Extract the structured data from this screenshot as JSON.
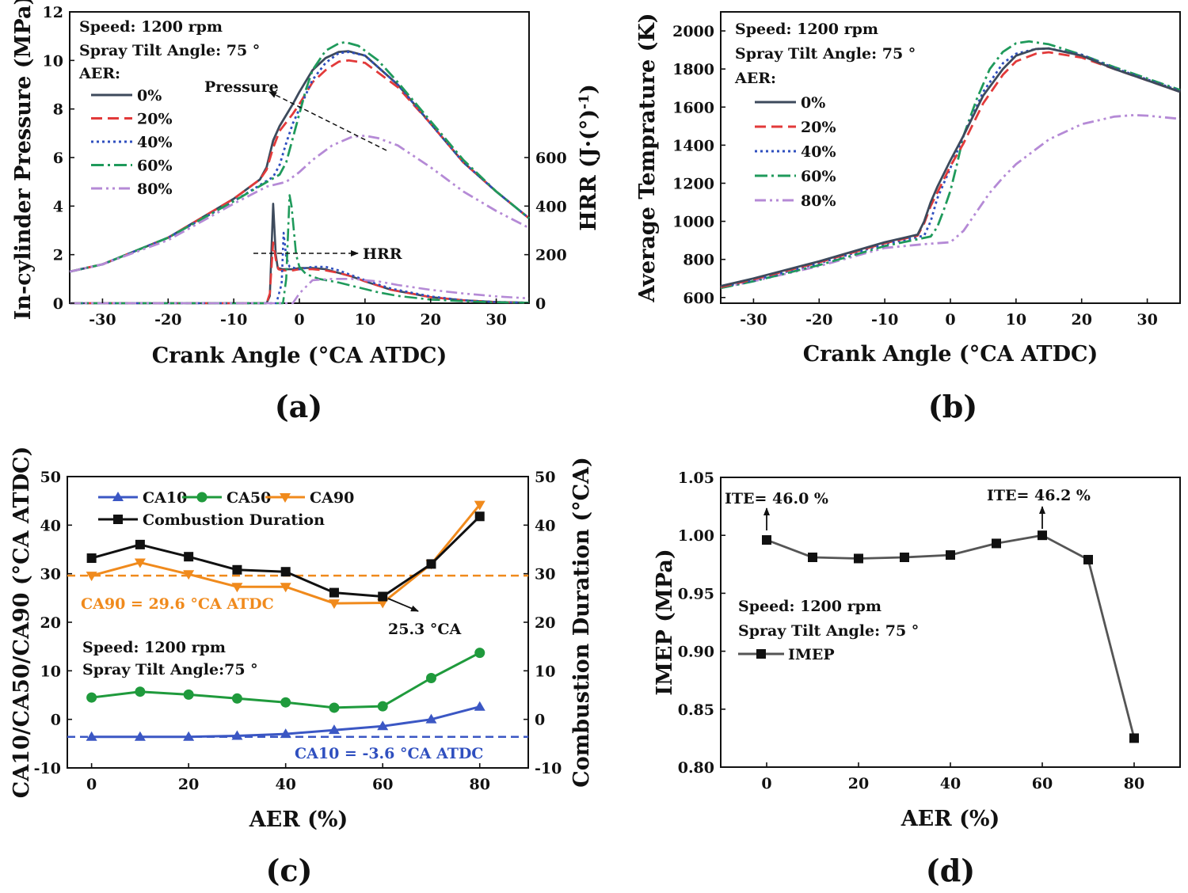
{
  "panels": [
    {
      "label": "(a)"
    },
    {
      "label": "(b)"
    },
    {
      "label": "(c)"
    },
    {
      "label": "(d)"
    }
  ],
  "colors": {
    "p0": "#3d4a5c",
    "p20": "#e23a3a",
    "p40": "#2f4fbf",
    "p60": "#1f9a5b",
    "p80": "#b58ad6",
    "ca10": "#3b57c4",
    "ca50": "#1f9a3c",
    "ca90": "#f08a1c",
    "dur": "#111111",
    "imep": "#555555"
  },
  "chart_data": [
    {
      "id": "a",
      "type": "line",
      "xlabel": "Crank Angle (°CA ATDC)",
      "ylabel": "In-cylinder Pressure (MPa)",
      "y2label": "HRR (J·(°)",
      "y2label_sup": "-1",
      "y2label_close": ")",
      "xlim": [
        -35,
        35
      ],
      "ylim": [
        0,
        12
      ],
      "y2lim": [
        0,
        1200
      ],
      "xticks": [
        "-30",
        "-20",
        "-10",
        "0",
        "10",
        "20",
        "30"
      ],
      "yticks": [
        "0",
        "2",
        "4",
        "6",
        "8",
        "10",
        "12"
      ],
      "y2ticks": [
        "0",
        "200",
        "400",
        "600"
      ],
      "annotations": {
        "speed": "Speed: 1200 rpm",
        "tilt": "Spray Tilt Angle: 75 °",
        "aer": "AER:",
        "pressure": "Pressure",
        "hrr": "HRR"
      },
      "legend": [
        "0%",
        "20%",
        "40%",
        "60%",
        "80%"
      ],
      "pressure_series": [
        {
          "name": "0%",
          "x": [
            -35,
            -30,
            -20,
            -10,
            -6,
            -5,
            -4,
            -3,
            -1,
            0,
            2,
            4,
            6,
            7.5,
            10,
            15,
            20,
            25,
            30,
            35
          ],
          "y": [
            1.3,
            1.6,
            2.7,
            4.3,
            5.1,
            5.6,
            6.7,
            7.3,
            8.2,
            8.7,
            9.6,
            10.1,
            10.35,
            10.38,
            10.2,
            9.0,
            7.4,
            5.8,
            4.6,
            3.5
          ]
        },
        {
          "name": "20%",
          "x": [
            -35,
            -30,
            -20,
            -10,
            -6,
            -5,
            -4,
            -3,
            -1,
            0,
            2,
            4,
            6,
            7.5,
            10,
            15,
            20,
            25,
            30,
            35
          ],
          "y": [
            1.3,
            1.6,
            2.7,
            4.3,
            5.1,
            5.5,
            6.4,
            7.1,
            7.8,
            8.2,
            9.1,
            9.6,
            9.95,
            10.0,
            9.9,
            8.9,
            7.4,
            5.8,
            4.6,
            3.5
          ]
        },
        {
          "name": "40%",
          "x": [
            -35,
            -30,
            -20,
            -10,
            -4,
            -3,
            -2,
            -1,
            0,
            2,
            4,
            6,
            7.5,
            10,
            15,
            20,
            25,
            30,
            35
          ],
          "y": [
            1.3,
            1.6,
            2.7,
            4.2,
            5.2,
            5.7,
            6.6,
            7.4,
            8.0,
            9.2,
            9.9,
            10.3,
            10.35,
            10.2,
            9.0,
            7.4,
            5.8,
            4.6,
            3.5
          ]
        },
        {
          "name": "60%",
          "x": [
            -35,
            -30,
            -20,
            -10,
            -3,
            -2,
            -1,
            0,
            1,
            2,
            4,
            6,
            7,
            9,
            12,
            15,
            20,
            25,
            30,
            35
          ],
          "y": [
            1.3,
            1.6,
            2.7,
            4.2,
            5.3,
            5.8,
            6.8,
            7.8,
            8.8,
            9.6,
            10.4,
            10.7,
            10.75,
            10.6,
            10.0,
            9.1,
            7.5,
            5.9,
            4.6,
            3.5
          ]
        },
        {
          "name": "80%",
          "x": [
            -35,
            -30,
            -20,
            -10,
            -5,
            -2,
            0,
            2,
            5,
            8,
            10,
            12,
            15,
            20,
            25,
            30,
            35
          ],
          "y": [
            1.3,
            1.6,
            2.6,
            4.1,
            4.8,
            5.0,
            5.4,
            5.9,
            6.5,
            6.85,
            6.9,
            6.8,
            6.5,
            5.6,
            4.6,
            3.8,
            3.1
          ]
        }
      ],
      "hrr_series": [
        {
          "name": "0%",
          "x": [
            -35,
            -8,
            -5,
            -4.5,
            -4,
            -3.6,
            -3.3,
            -2.5,
            -1,
            0,
            2,
            4,
            6,
            8,
            10,
            14,
            20,
            25,
            30,
            35
          ],
          "y": [
            0,
            0,
            0,
            30,
            410,
            200,
            145,
            140,
            140,
            145,
            145,
            140,
            125,
            110,
            90,
            55,
            25,
            12,
            5,
            2
          ]
        },
        {
          "name": "20%",
          "x": [
            -35,
            -8,
            -5,
            -4.5,
            -4,
            -3.6,
            -3.2,
            -2.5,
            -1,
            0,
            2,
            4,
            6,
            8,
            10,
            14,
            20,
            25,
            30,
            35
          ],
          "y": [
            0,
            0,
            0,
            40,
            250,
            180,
            140,
            135,
            135,
            140,
            140,
            135,
            125,
            110,
            90,
            55,
            25,
            12,
            5,
            2
          ]
        },
        {
          "name": "40%",
          "x": [
            -35,
            -5,
            -3.5,
            -2.7,
            -2.4,
            -2,
            -1.5,
            0,
            2,
            4,
            6,
            8,
            10,
            14,
            20,
            25,
            30,
            35
          ],
          "y": [
            0,
            0,
            0,
            80,
            290,
            190,
            150,
            140,
            150,
            150,
            135,
            115,
            95,
            60,
            28,
            12,
            5,
            2
          ]
        },
        {
          "name": "60%",
          "x": [
            -35,
            -4,
            -2.5,
            -2,
            -1.5,
            -1.2,
            -0.5,
            0,
            1,
            3,
            6,
            9,
            12,
            15,
            20,
            25,
            30,
            35
          ],
          "y": [
            0,
            0,
            0,
            100,
            445,
            400,
            200,
            150,
            120,
            100,
            85,
            65,
            45,
            30,
            15,
            8,
            4,
            2
          ]
        },
        {
          "name": "80%",
          "x": [
            -35,
            -3,
            -1,
            0,
            2,
            5,
            8,
            10,
            12,
            15,
            20,
            25,
            30,
            35
          ],
          "y": [
            0,
            0,
            0,
            40,
            95,
            100,
            100,
            95,
            90,
            75,
            55,
            40,
            28,
            20
          ]
        }
      ]
    },
    {
      "id": "b",
      "type": "line",
      "xlabel": "Crank Angle (°CA ATDC)",
      "ylabel": "Average Temprature (K)",
      "xlim": [
        -35,
        35
      ],
      "ylim": [
        570,
        2100
      ],
      "xticks": [
        "-30",
        "-20",
        "-10",
        "0",
        "10",
        "20",
        "30"
      ],
      "yticks": [
        "600",
        "800",
        "1000",
        "1200",
        "1400",
        "1600",
        "1800",
        "2000"
      ],
      "annotations": {
        "speed": "Speed: 1200 rpm",
        "tilt": "Spray Tilt Angle: 75 °",
        "aer": "AER:"
      },
      "legend": [
        "0%",
        "20%",
        "40%",
        "60%",
        "80%"
      ],
      "series": [
        {
          "name": "0%",
          "x": [
            -35,
            -30,
            -20,
            -10,
            -5,
            -4,
            -3,
            -2,
            0,
            2,
            5,
            8,
            10,
            13,
            15,
            20,
            25,
            30,
            35
          ],
          "y": [
            660,
            700,
            790,
            890,
            930,
            1000,
            1100,
            1180,
            1320,
            1450,
            1660,
            1800,
            1870,
            1905,
            1908,
            1870,
            1800,
            1740,
            1680
          ]
        },
        {
          "name": "20%",
          "x": [
            -35,
            -30,
            -20,
            -10,
            -5,
            -4,
            -3,
            -2,
            0,
            2,
            5,
            8,
            10,
            13,
            15,
            20,
            25,
            30,
            35
          ],
          "y": [
            655,
            695,
            785,
            885,
            925,
            990,
            1080,
            1150,
            1290,
            1410,
            1620,
            1770,
            1840,
            1880,
            1888,
            1860,
            1800,
            1740,
            1680
          ]
        },
        {
          "name": "40%",
          "x": [
            -35,
            -30,
            -20,
            -10,
            -4,
            -3,
            -2,
            -1,
            0,
            2,
            5,
            8,
            10,
            13,
            15,
            20,
            25,
            30,
            35
          ],
          "y": [
            655,
            690,
            780,
            880,
            925,
            1000,
            1120,
            1200,
            1280,
            1450,
            1680,
            1830,
            1880,
            1905,
            1908,
            1875,
            1805,
            1745,
            1685
          ]
        },
        {
          "name": "60%",
          "x": [
            -35,
            -30,
            -20,
            -10,
            -3,
            -2,
            -1,
            0,
            1,
            2,
            4,
            6,
            8,
            10,
            12,
            15,
            20,
            25,
            30,
            35
          ],
          "y": [
            650,
            685,
            770,
            870,
            920,
            970,
            1060,
            1160,
            1300,
            1450,
            1640,
            1800,
            1890,
            1935,
            1945,
            1930,
            1875,
            1810,
            1750,
            1690
          ]
        },
        {
          "name": "80%",
          "x": [
            -35,
            -30,
            -20,
            -10,
            -4,
            0,
            2,
            4,
            6,
            8,
            10,
            15,
            20,
            25,
            28,
            30,
            35
          ],
          "y": [
            650,
            685,
            765,
            860,
            880,
            890,
            950,
            1050,
            1150,
            1230,
            1300,
            1430,
            1510,
            1550,
            1558,
            1555,
            1538
          ]
        }
      ]
    },
    {
      "id": "c",
      "type": "line",
      "xlabel": "AER (%)",
      "ylabel": "CA10/CA50/CA90 (°CA ATDC)",
      "y2label": "Combustion Duration (°CA)",
      "xlim": [
        -5,
        90
      ],
      "ylim": [
        -10,
        50
      ],
      "xticks": [
        "0",
        "20",
        "40",
        "60",
        "80"
      ],
      "yticks": [
        "-10",
        "0",
        "10",
        "20",
        "30",
        "40",
        "50"
      ],
      "y2ticks": [
        "-10",
        "0",
        "10",
        "20",
        "30",
        "40",
        "50"
      ],
      "annotations": {
        "speed": "Speed: 1200 rpm",
        "tilt": "Spray Tilt Angle:75 °",
        "ca90_ref": "CA90 = 29.6 °CA ATDC",
        "ca10_ref": "CA10 = -3.6 °CA ATDC",
        "min_dur": "25.3 °CA"
      },
      "reference_lines": {
        "ca90": 29.6,
        "ca10": -3.6
      },
      "x": [
        0,
        10,
        20,
        30,
        40,
        50,
        60,
        70,
        80
      ],
      "series": [
        {
          "name": "CA10",
          "values": [
            -3.6,
            -3.6,
            -3.6,
            -3.4,
            -3.0,
            -2.2,
            -1.4,
            0.0,
            2.6
          ]
        },
        {
          "name": "CA50",
          "values": [
            4.5,
            5.7,
            5.1,
            4.3,
            3.5,
            2.4,
            2.7,
            8.5,
            13.7
          ]
        },
        {
          "name": "CA90",
          "values": [
            29.6,
            32.3,
            29.9,
            27.3,
            27.3,
            23.9,
            24.0,
            32.0,
            44.2
          ]
        },
        {
          "name": "Combustion Duration",
          "values": [
            33.2,
            36.0,
            33.5,
            30.8,
            30.4,
            26.1,
            25.3,
            32.0,
            41.8
          ]
        }
      ]
    },
    {
      "id": "d",
      "type": "line",
      "xlabel": "AER (%)",
      "ylabel": "IMEP (MPa)",
      "xlim": [
        -10,
        90
      ],
      "ylim": [
        0.8,
        1.05
      ],
      "xticks": [
        "0",
        "20",
        "40",
        "60",
        "80"
      ],
      "yticks": [
        "0.80",
        "0.85",
        "0.90",
        "0.95",
        "1.00",
        "1.05"
      ],
      "annotations": {
        "speed": "Speed: 1200 rpm",
        "tilt": "Spray Tilt Angle: 75 °",
        "ite0": "ITE= 46.0 %",
        "ite60": "ITE= 46.2 %"
      },
      "legend": [
        "IMEP"
      ],
      "x": [
        0,
        10,
        20,
        30,
        40,
        50,
        60,
        70,
        80
      ],
      "series": [
        {
          "name": "IMEP",
          "values": [
            0.996,
            0.981,
            0.98,
            0.981,
            0.983,
            0.993,
            1.0,
            0.979,
            0.825
          ]
        }
      ]
    }
  ]
}
